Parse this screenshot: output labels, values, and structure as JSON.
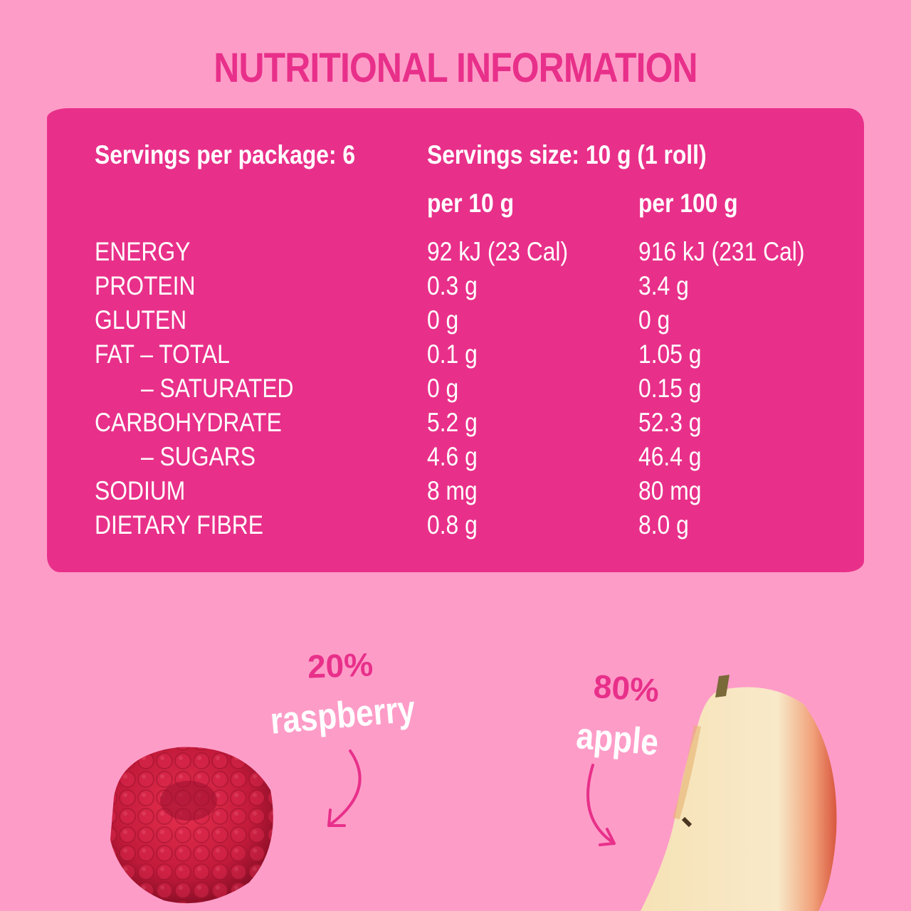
{
  "title": "NUTRITIONAL INFORMATION",
  "servings_per_package": "Servings per package: 6",
  "serving_size": "Servings size: 10 g (1 roll)",
  "columns": [
    "per 10 g",
    "per 100 g"
  ],
  "rows": [
    {
      "label": "ENERGY",
      "per10": "92 kJ (23 Cal)",
      "per100": "916 kJ (231 Cal)"
    },
    {
      "label": "PROTEIN",
      "per10": "0.3 g",
      "per100": "3.4 g"
    },
    {
      "label": "GLUTEN",
      "per10": "0 g",
      "per100": "0 g"
    },
    {
      "label": "FAT – TOTAL",
      "per10": "0.1 g",
      "per100": "1.05 g"
    },
    {
      "label": "– SATURATED",
      "per10": "0 g",
      "per100": "0.15 g"
    },
    {
      "label": "CARBOHYDRATE",
      "per10": "5.2 g",
      "per100": "52.3 g"
    },
    {
      "label": "– SUGARS",
      "per10": "4.6 g",
      "per100": "46.4 g"
    },
    {
      "label": "SODIUM",
      "per10": "8 mg",
      "per100": "80 mg"
    },
    {
      "label": "DIETARY FIBRE",
      "per10": "0.8 g",
      "per100": "8.0 g"
    }
  ],
  "ingredients": [
    {
      "percent": "20%",
      "name": "raspberry"
    },
    {
      "percent": "80%",
      "name": "apple"
    }
  ],
  "colors": {
    "background": "#fe9cc8",
    "accent": "#e8308a"
  }
}
